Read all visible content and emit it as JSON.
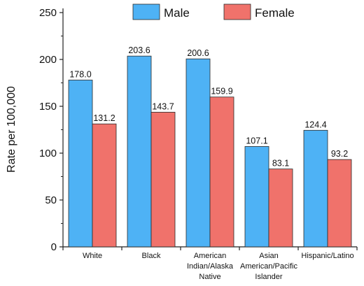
{
  "chart_data": {
    "type": "bar",
    "title": "",
    "xlabel": "",
    "ylabel": "Rate per 100,000",
    "ylim": [
      0,
      250
    ],
    "yticks": [
      0,
      50,
      100,
      150,
      200,
      250
    ],
    "categories": [
      [
        "White"
      ],
      [
        "Black"
      ],
      [
        "American",
        "Indian/Alaska",
        "Native"
      ],
      [
        "Asian",
        "American/Pacific",
        "Islander"
      ],
      [
        "Hispanic/Latino"
      ]
    ],
    "series": [
      {
        "name": "Male",
        "color": "#4eb2f5",
        "values": [
          178.0,
          203.6,
          200.6,
          107.1,
          124.4
        ],
        "labels": [
          "178.0",
          "203.6",
          "200.6",
          "107.1",
          "124.4"
        ]
      },
      {
        "name": "Female",
        "color": "#f0726b",
        "values": [
          131.2,
          143.7,
          159.9,
          83.1,
          93.2
        ],
        "labels": [
          "131.2",
          "143.7",
          "159.9",
          "83.1",
          "93.2"
        ]
      }
    ],
    "legend": "top-right",
    "grid": false
  }
}
